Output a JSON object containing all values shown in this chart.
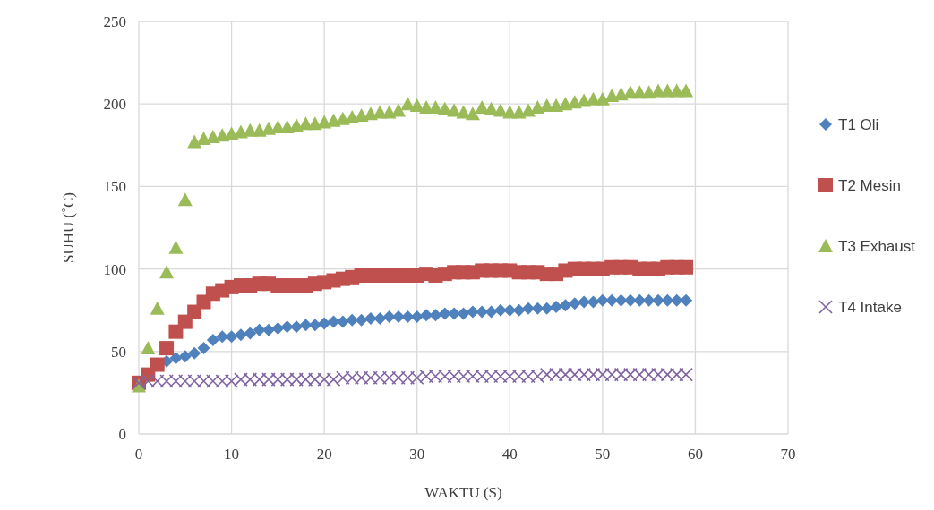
{
  "chart_data": {
    "type": "scatter",
    "xlabel": "WAKTU (S)",
    "ylabel": "SUHU (˚C)",
    "xlim": [
      0,
      70
    ],
    "xticks": [
      0,
      10,
      20,
      30,
      40,
      50,
      60,
      70
    ],
    "ylim": [
      0,
      250
    ],
    "yticks": [
      0,
      50,
      100,
      150,
      200,
      250
    ],
    "grid": true,
    "legend": "right",
    "x": [
      0,
      1,
      2,
      3,
      4,
      5,
      6,
      7,
      8,
      9,
      10,
      11,
      12,
      13,
      14,
      15,
      16,
      17,
      18,
      19,
      20,
      21,
      22,
      23,
      24,
      25,
      26,
      27,
      28,
      29,
      30,
      31,
      32,
      33,
      34,
      35,
      36,
      37,
      38,
      39,
      40,
      41,
      42,
      43,
      44,
      45,
      46,
      47,
      48,
      49,
      50,
      51,
      52,
      53,
      54,
      55,
      56,
      57,
      58,
      59
    ],
    "series": [
      {
        "name": "T1 Oli",
        "color": "#4f81bd",
        "marker": "diamond",
        "values": [
          null,
          null,
          null,
          44,
          46,
          47,
          49,
          52,
          57,
          59,
          59,
          60,
          61,
          63,
          63,
          64,
          65,
          65,
          66,
          66,
          67,
          68,
          68,
          69,
          69,
          70,
          70,
          71,
          71,
          71,
          71,
          72,
          72,
          73,
          73,
          73,
          74,
          74,
          74,
          75,
          75,
          75,
          76,
          76,
          76,
          77,
          78,
          79,
          80,
          80,
          81,
          81,
          81,
          81,
          81,
          81,
          81,
          81,
          81,
          81
        ]
      },
      {
        "name": "T2 Mesin",
        "color": "#c0504d",
        "marker": "square",
        "values": [
          31,
          36,
          42,
          52,
          62,
          68,
          74,
          80,
          85,
          87,
          89,
          90,
          90,
          91,
          91,
          90,
          90,
          90,
          90,
          91,
          92,
          93,
          94,
          95,
          96,
          96,
          96,
          96,
          96,
          96,
          96,
          97,
          96,
          97,
          98,
          98,
          98,
          99,
          99,
          99,
          99,
          98,
          98,
          98,
          97,
          97,
          99,
          100,
          100,
          100,
          100,
          101,
          101,
          101,
          100,
          100,
          100,
          101,
          101,
          101
        ]
      },
      {
        "name": "T3 Exhaust",
        "color": "#9bbb59",
        "marker": "triangle",
        "values": [
          29,
          52,
          76,
          98,
          113,
          142,
          177,
          179,
          180,
          181,
          182,
          183,
          184,
          184,
          185,
          186,
          186,
          187,
          188,
          188,
          189,
          190,
          191,
          192,
          193,
          194,
          195,
          195,
          196,
          200,
          199,
          198,
          198,
          197,
          196,
          195,
          194,
          198,
          197,
          196,
          195,
          195,
          196,
          198,
          199,
          199,
          200,
          201,
          202,
          203,
          203,
          205,
          206,
          207,
          207,
          207,
          208,
          208,
          208,
          208
        ]
      },
      {
        "name": "T4 Intake",
        "color": "#8064a2",
        "marker": "cross",
        "values": [
          31,
          32,
          32,
          32,
          32,
          32,
          32,
          32,
          32,
          32,
          32,
          33,
          33,
          33,
          33,
          33,
          33,
          33,
          33,
          33,
          33,
          33,
          34,
          34,
          34,
          34,
          34,
          34,
          34,
          34,
          34,
          35,
          35,
          35,
          35,
          35,
          35,
          35,
          35,
          35,
          35,
          35,
          35,
          35,
          36,
          36,
          36,
          36,
          36,
          36,
          36,
          36,
          36,
          36,
          36,
          36,
          36,
          36,
          36,
          36
        ]
      }
    ]
  }
}
